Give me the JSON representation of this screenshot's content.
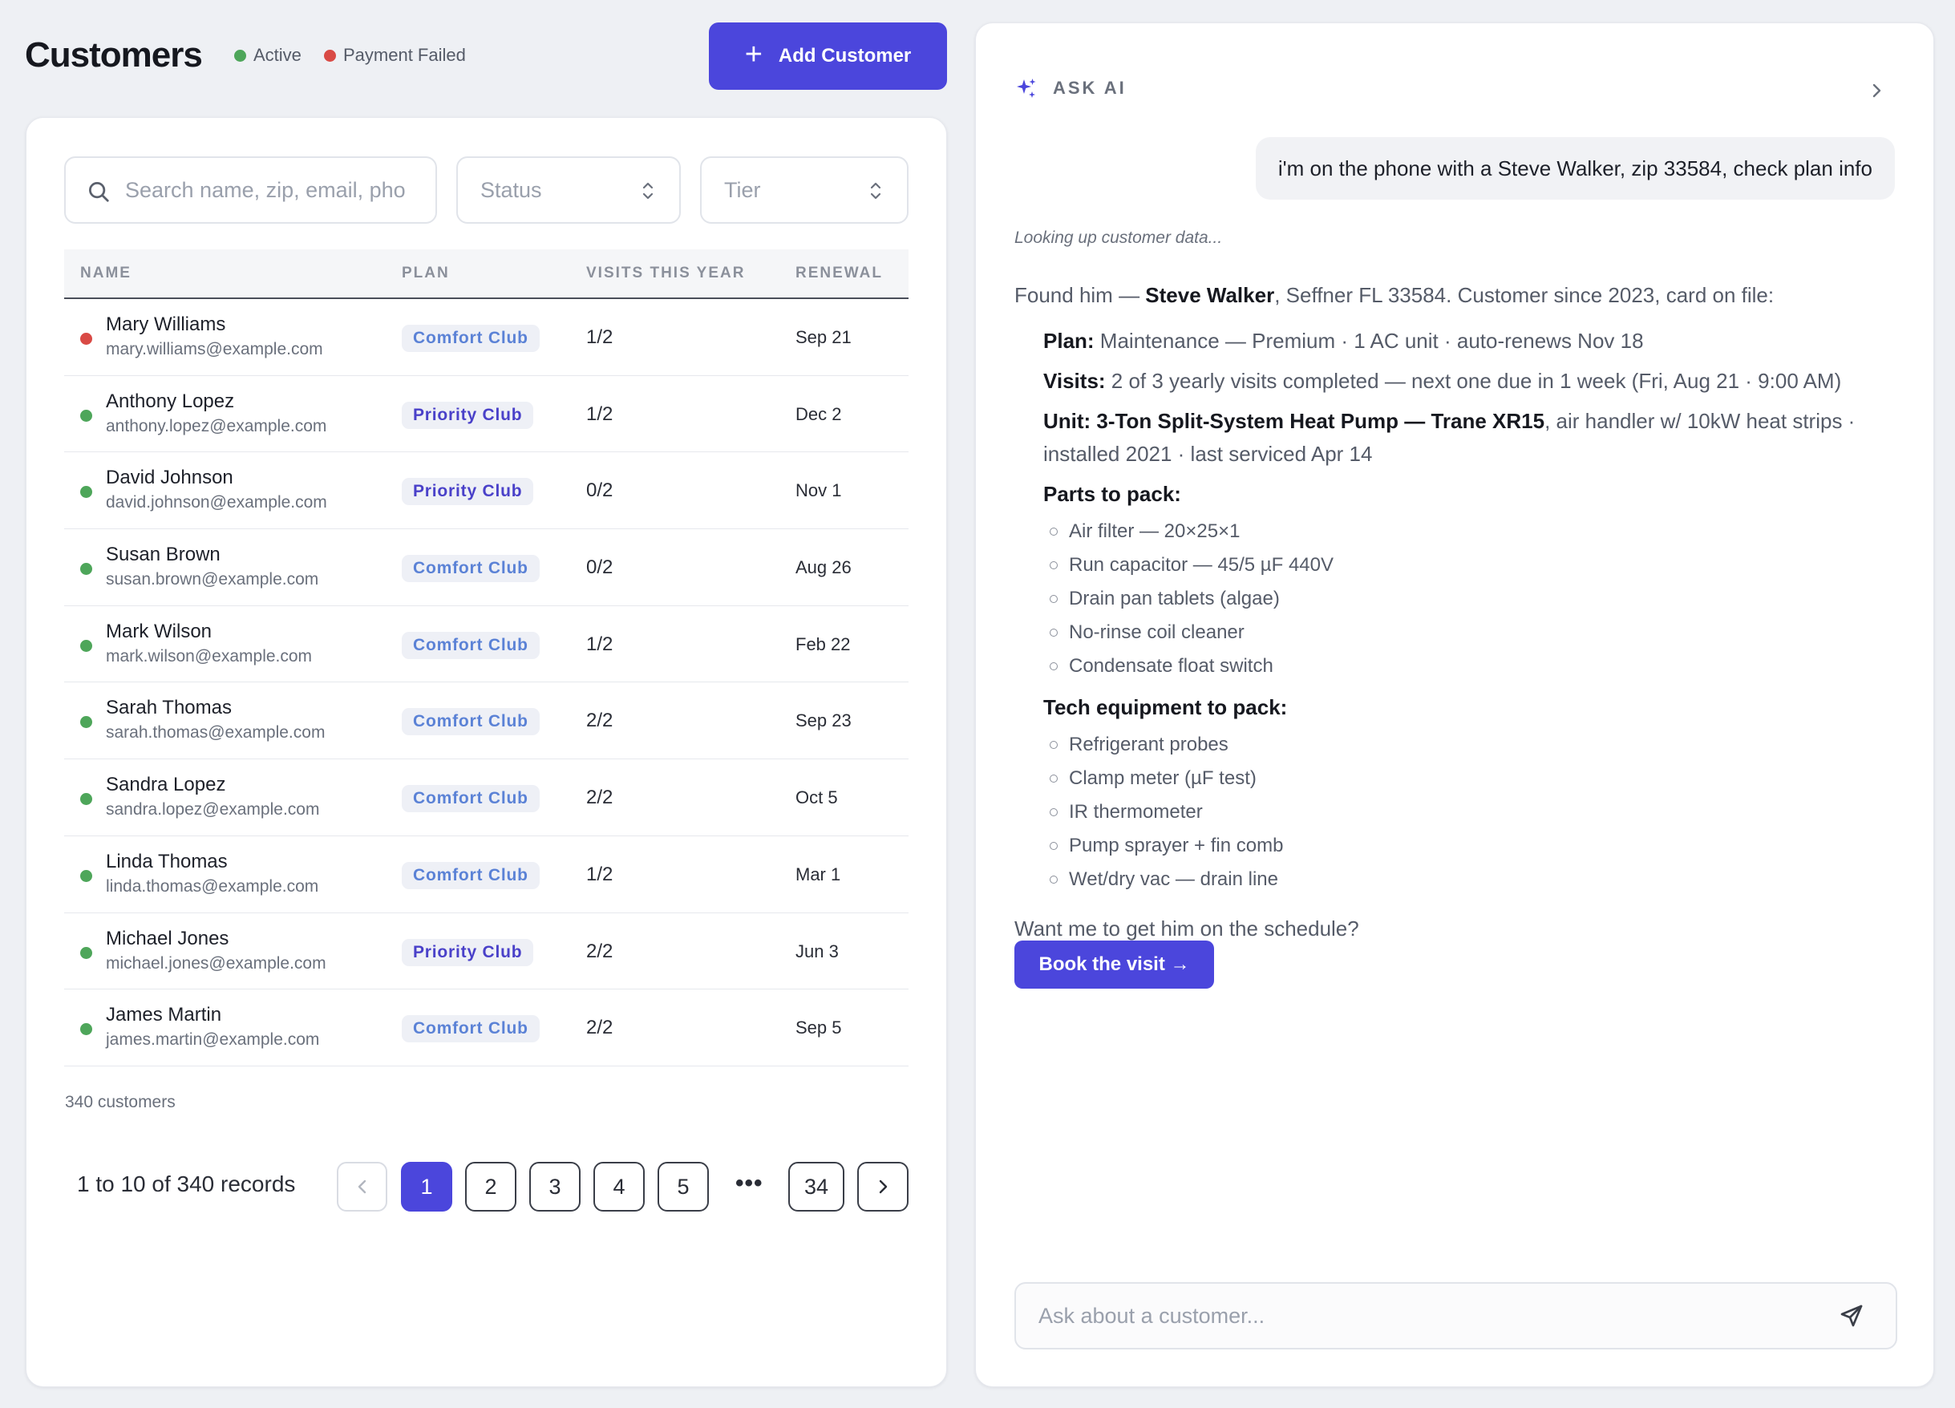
{
  "header": {
    "title": "Customers",
    "legend": [
      {
        "label": "Active",
        "color": "#4ea65a"
      },
      {
        "label": "Payment Failed",
        "color": "#d94a45"
      }
    ],
    "add_button_label": "Add Customer",
    "add_button_icon": "plus-icon"
  },
  "filters": {
    "search_placeholder": "Search name, zip, email, phone",
    "status_label": "Status",
    "tier_label": "Tier"
  },
  "table": {
    "columns": [
      "NAME",
      "PLAN",
      "VISITS THIS YEAR",
      "RENEWAL"
    ],
    "rows": [
      {
        "name": "Mary Williams",
        "email": "mary.williams@example.com",
        "status": "failed",
        "plan": "Comfort Club",
        "tier": "comfort",
        "visits": "1/2",
        "renewal": "Sep 21"
      },
      {
        "name": "Anthony Lopez",
        "email": "anthony.lopez@example.com",
        "status": "active",
        "plan": "Priority Club",
        "tier": "priority",
        "visits": "1/2",
        "renewal": "Dec 2"
      },
      {
        "name": "David Johnson",
        "email": "david.johnson@example.com",
        "status": "active",
        "plan": "Priority Club",
        "tier": "priority",
        "visits": "0/2",
        "renewal": "Nov 1"
      },
      {
        "name": "Susan Brown",
        "email": "susan.brown@example.com",
        "status": "active",
        "plan": "Comfort Club",
        "tier": "comfort",
        "visits": "0/2",
        "renewal": "Aug 26"
      },
      {
        "name": "Mark Wilson",
        "email": "mark.wilson@example.com",
        "status": "active",
        "plan": "Comfort Club",
        "tier": "comfort",
        "visits": "1/2",
        "renewal": "Feb 22"
      },
      {
        "name": "Sarah Thomas",
        "email": "sarah.thomas@example.com",
        "status": "active",
        "plan": "Comfort Club",
        "tier": "comfort",
        "visits": "2/2",
        "renewal": "Sep 23"
      },
      {
        "name": "Sandra Lopez",
        "email": "sandra.lopez@example.com",
        "status": "active",
        "plan": "Comfort Club",
        "tier": "comfort",
        "visits": "2/2",
        "renewal": "Oct 5"
      },
      {
        "name": "Linda Thomas",
        "email": "linda.thomas@example.com",
        "status": "active",
        "plan": "Comfort Club",
        "tier": "comfort",
        "visits": "1/2",
        "renewal": "Mar 1"
      },
      {
        "name": "Michael Jones",
        "email": "michael.jones@example.com",
        "status": "active",
        "plan": "Priority Club",
        "tier": "priority",
        "visits": "2/2",
        "renewal": "Jun 3"
      },
      {
        "name": "James Martin",
        "email": "james.martin@example.com",
        "status": "active",
        "plan": "Comfort Club",
        "tier": "comfort",
        "visits": "2/2",
        "renewal": "Sep 5"
      }
    ],
    "total_label": "340 customers"
  },
  "pagination": {
    "summary": "1 to 10 of 340 records",
    "pages": [
      "1",
      "2",
      "3",
      "4",
      "5"
    ],
    "ellipsis": "•••",
    "last_page": "34",
    "current": "1"
  },
  "ai": {
    "header_label": "ASK AI",
    "header_icon": "sparkle-icon",
    "user_message": "i'm on the phone with a Steve Walker, zip 33584, check plan info",
    "status_note": "Looking up customer data...",
    "found_prefix": "Found him — ",
    "found_name": "Steve Walker",
    "found_suffix": ", Seffner FL 33584. Customer since 2023, card on file:",
    "plan_label": "Plan:",
    "plan_value": " Maintenance — Premium · 1 AC unit · auto-renews Nov 18",
    "visits_label": "Visits:",
    "visits_value": " 2 of 3 yearly visits completed — next one due in 1 week (Fri, Aug 21 · 9:00 AM)",
    "unit_label": "Unit:",
    "unit_bold": " 3-Ton Split-System Heat Pump — Trane XR15",
    "unit_value": ", air handler w/ 10kW heat strips ·",
    "unit_value_2": "installed 2021 · last serviced Apr 14",
    "parts_heading": "Parts to pack:",
    "parts": [
      "Air filter — 20×25×1",
      "Run capacitor — 45/5 µF 440V",
      "Drain pan tablets (algae)",
      "No-rinse coil cleaner",
      "Condensate float switch"
    ],
    "equipment_heading": "Tech equipment to pack:",
    "equipment": [
      "Refrigerant probes",
      "Clamp meter (µF test)",
      "IR thermometer",
      "Pump sprayer + fin comb",
      "Wet/dry vac — drain line"
    ],
    "followup": "Want me to get him on the schedule?",
    "book_button_label": "Book the visit →",
    "input_placeholder": "Ask about a customer..."
  }
}
